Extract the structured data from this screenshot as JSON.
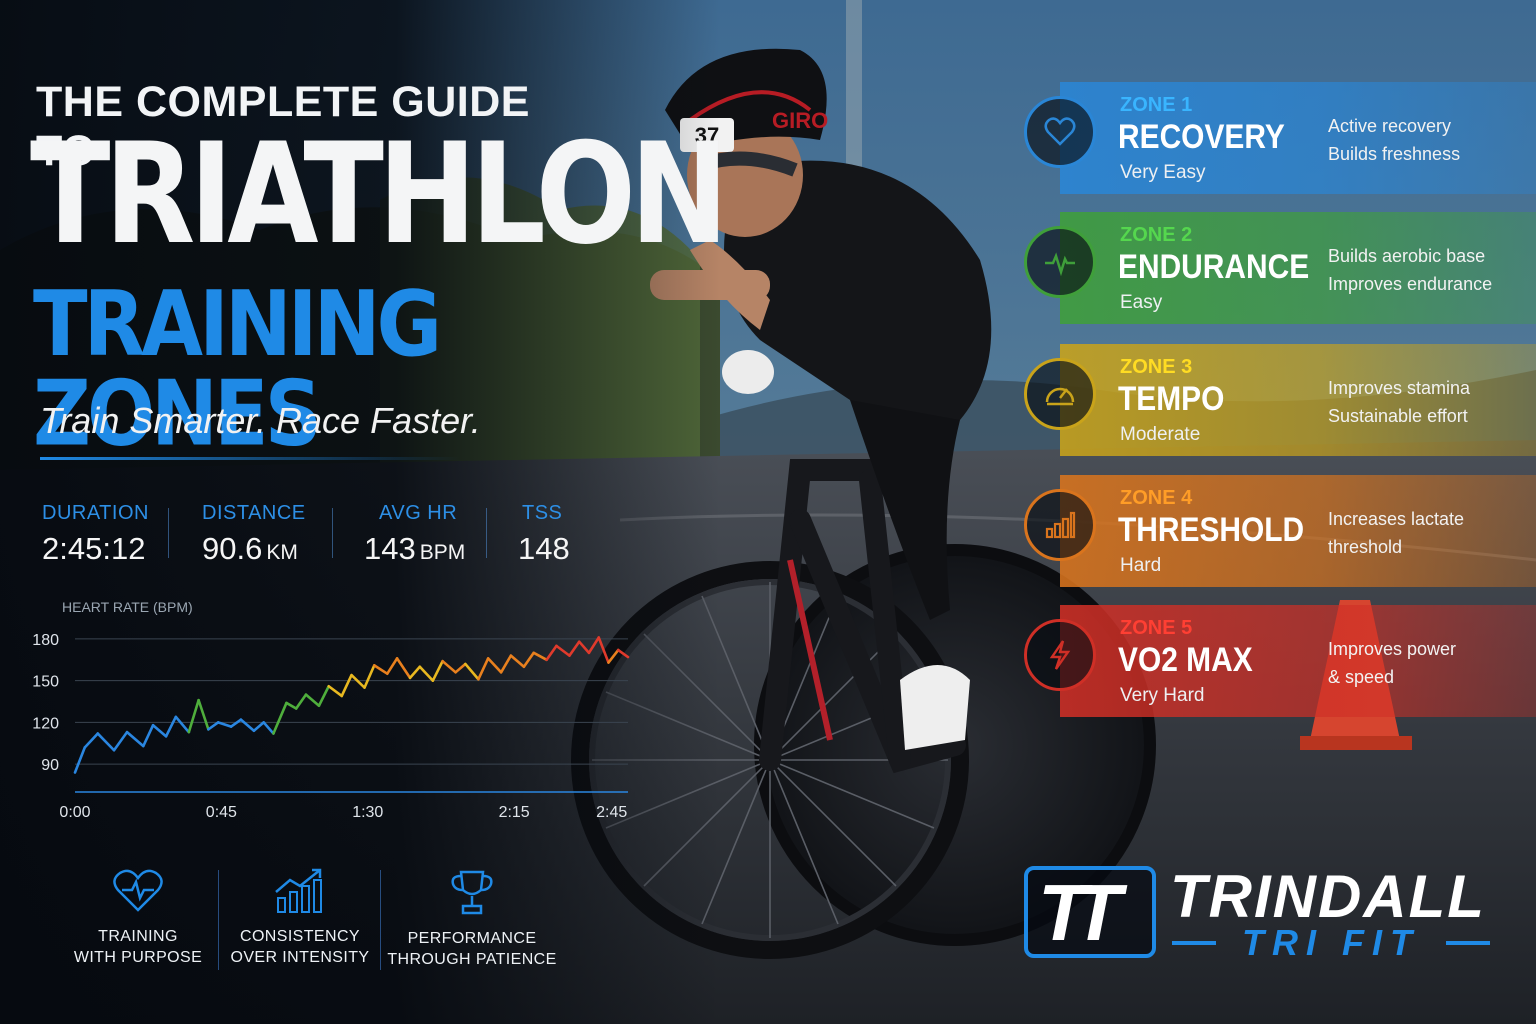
{
  "title": {
    "line1": "THE COMPLETE GUIDE TO",
    "line2": "TRIATHLON",
    "line3": "TRAINING ZONES",
    "tagline": "Train Smarter. Race Faster."
  },
  "race_number": "37",
  "helmet_brand": "GIRO",
  "stats": [
    {
      "label": "DURATION",
      "value": "2:45:12",
      "unit": ""
    },
    {
      "label": "DISTANCE",
      "value": "90.6",
      "unit": "KM"
    },
    {
      "label": "AVG HR",
      "value": "143",
      "unit": "BPM"
    },
    {
      "label": "TSS",
      "value": "148",
      "unit": ""
    }
  ],
  "chart_data": {
    "type": "line",
    "title": "HEART RATE (BPM)",
    "xlabel": "",
    "ylabel": "",
    "x_ticks": [
      "0:00",
      "0:45",
      "1:30",
      "2:15",
      "2:45"
    ],
    "y_ticks": [
      90,
      120,
      150,
      180
    ],
    "ylim": [
      70,
      190
    ],
    "xlim": [
      0,
      170
    ],
    "grid": true,
    "x": [
      0,
      3,
      7,
      12,
      16,
      21,
      24,
      28,
      31,
      35,
      38,
      41,
      44,
      48,
      51,
      55,
      58,
      61,
      65,
      68,
      71,
      75,
      78,
      82,
      85,
      89,
      92,
      96,
      99,
      103,
      106,
      110,
      113,
      117,
      120,
      124,
      127,
      131,
      134,
      138,
      141,
      145,
      148,
      152,
      155,
      158,
      161,
      164,
      167,
      170
    ],
    "values": [
      84,
      102,
      112,
      100,
      113,
      103,
      118,
      110,
      124,
      113,
      136,
      115,
      120,
      117,
      122,
      114,
      120,
      112,
      134,
      130,
      140,
      132,
      146,
      139,
      154,
      145,
      161,
      155,
      166,
      152,
      160,
      150,
      164,
      156,
      162,
      151,
      166,
      156,
      168,
      160,
      170,
      165,
      175,
      168,
      178,
      170,
      181,
      163,
      172,
      167
    ],
    "colors": {
      "zone1": "#2a86e0",
      "zone2": "#4fae3c",
      "zone3": "#e8b820",
      "zone4": "#e8801e",
      "zone5": "#e03a2c"
    }
  },
  "values_row": [
    {
      "icon": "heart-monitor-icon",
      "line1": "TRAINING",
      "line2": "WITH PURPOSE"
    },
    {
      "icon": "growth-chart-icon",
      "line1": "CONSISTENCY",
      "line2": "OVER INTENSITY"
    },
    {
      "icon": "trophy-icon",
      "line1": "PERFORMANCE",
      "line2": "THROUGH PATIENCE"
    }
  ],
  "zones": [
    {
      "num": "ZONE 1",
      "name": "RECOVERY",
      "desc": "Very Easy",
      "b1": "Active recovery",
      "b2": "Builds freshness",
      "color": "#2a86d6",
      "icon": "heart-icon"
    },
    {
      "num": "ZONE 2",
      "name": "ENDURANCE",
      "desc": "Easy",
      "b1": "Builds aerobic base",
      "b2": "Improves endurance",
      "color": "#3f9f3a",
      "icon": "pulse-icon"
    },
    {
      "num": "ZONE 3",
      "name": "TEMPO",
      "desc": "Moderate",
      "b1": "Improves stamina",
      "b2": "Sustainable effort",
      "color": "#c9a31a",
      "icon": "gauge-icon"
    },
    {
      "num": "ZONE 4",
      "name": "THRESHOLD",
      "desc": "Hard",
      "b1": "Increases lactate",
      "b2": "threshold",
      "color": "#d9741d",
      "icon": "bars-icon"
    },
    {
      "num": "ZONE 5",
      "name": "VO2 MAX",
      "desc": "Very Hard",
      "b1": "Improves power",
      "b2": "& speed",
      "color": "#cf2f26",
      "icon": "lightning-icon"
    }
  ],
  "logo": {
    "mark": "TT",
    "name": "TRINDALL",
    "sub": "TRI FIT"
  }
}
